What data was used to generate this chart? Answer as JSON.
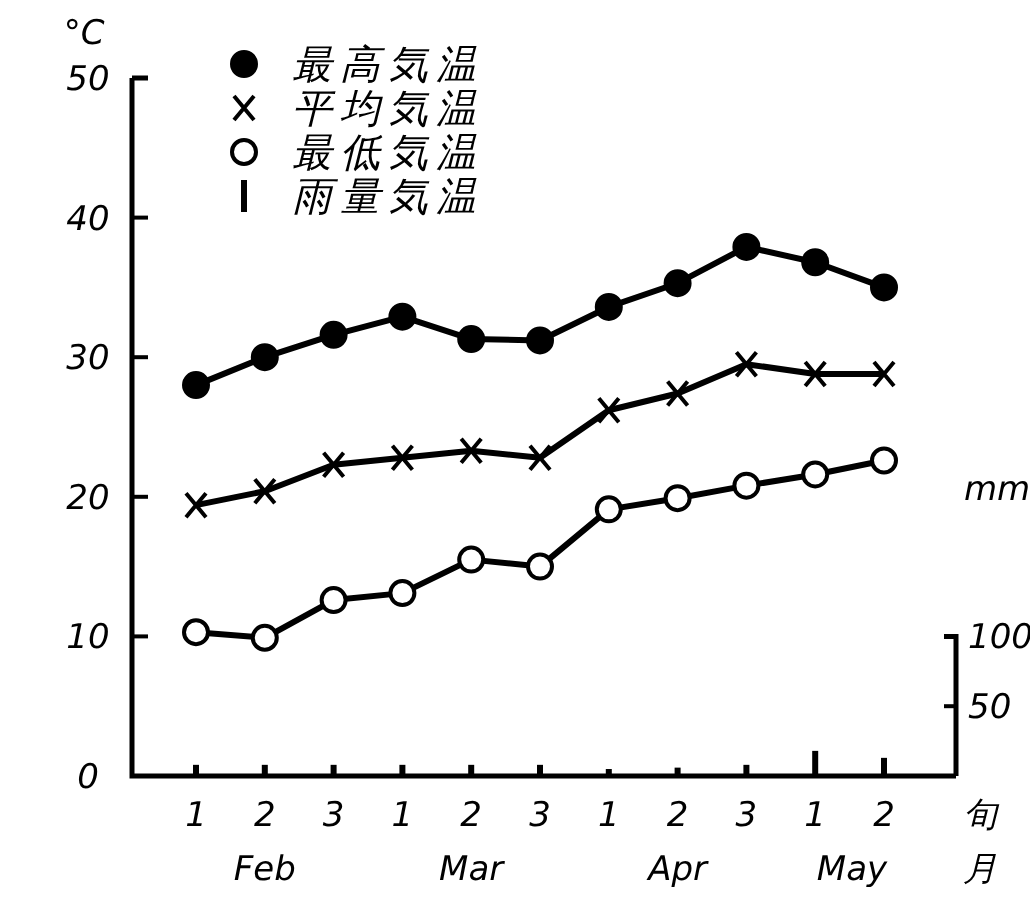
{
  "chart_data": {
    "type": "line",
    "ylabel": "°C",
    "xlabel": "旬",
    "y2label": "mm",
    "categories": [
      "1",
      "2",
      "3",
      "1",
      "2",
      "3",
      "1",
      "2",
      "3",
      "1",
      "2"
    ],
    "series": [
      {
        "name": "最高気温",
        "color": "#000000",
        "marker": "circle",
        "values": [
          28.0,
          30.0,
          31.6,
          32.9,
          31.3,
          31.2,
          33.6,
          35.3,
          37.9,
          36.8,
          35.0
        ]
      },
      {
        "name": "平均気温",
        "color": "#000000",
        "marker": "cross",
        "values": [
          19.4,
          20.4,
          22.3,
          22.8,
          23.3,
          22.8,
          26.2,
          27.4,
          29.5,
          28.8,
          28.8
        ]
      },
      {
        "name": "最低気温",
        "color": "#ffffff",
        "marker": "circle",
        "values": [
          10.3,
          9.9,
          12.6,
          13.1,
          15.5,
          15.0,
          19.1,
          19.9,
          20.8,
          21.6,
          22.6
        ]
      },
      {
        "name": "雨量気温",
        "type": "bar",
        "axis": "y2",
        "color": "#000000",
        "values": [
          8,
          8,
          8,
          8,
          8,
          8,
          5,
          6,
          8,
          18,
          13
        ]
      }
    ],
    "ylim": [
      0,
      50
    ],
    "yticks": [
      0,
      10,
      20,
      30,
      40,
      50
    ],
    "y2lim": [
      0,
      500
    ],
    "y2ticks": [
      50,
      100
    ],
    "annotations": [
      "Feb",
      "Mar",
      "Apr",
      "May",
      "月"
    ],
    "legend": "top left",
    "grid": false
  }
}
